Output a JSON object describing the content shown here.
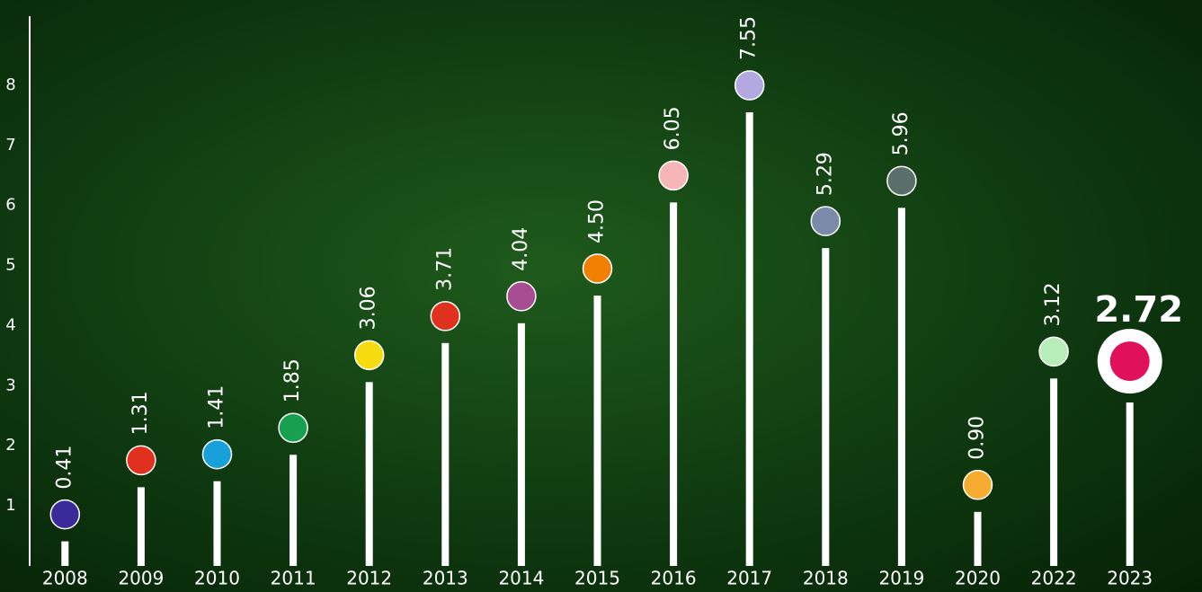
{
  "chart_data": {
    "type": "lollipop",
    "categories": [
      "2008",
      "2009",
      "2010",
      "2011",
      "2012",
      "2013",
      "2014",
      "2015",
      "2016",
      "2017",
      "2018",
      "2019",
      "2020",
      "2022",
      "2023"
    ],
    "values": [
      0.41,
      1.31,
      1.41,
      1.85,
      3.06,
      3.71,
      4.04,
      4.5,
      6.05,
      7.55,
      5.29,
      5.96,
      0.9,
      3.12,
      2.72
    ],
    "value_labels": [
      "0.41",
      "1.31",
      "1.41",
      "1.85",
      "3.06",
      "3.71",
      "4.04",
      "4.50",
      "6.05",
      "7.55",
      "5.29",
      "5.96",
      "0.90",
      "3.12",
      "2.72"
    ],
    "colors": [
      "#3a2a9a",
      "#e0301e",
      "#18a0d8",
      "#16a050",
      "#f5dc10",
      "#e0301e",
      "#a84d92",
      "#f08000",
      "#f6b6b8",
      "#b4a8e0",
      "#7a8aa8",
      "#5a6e6a",
      "#f5ac30",
      "#b8ecb8",
      "#e0105a"
    ],
    "highlight": "2023",
    "ylim": [
      0,
      9.15
    ],
    "yticks": [
      1,
      2,
      3,
      4,
      5,
      6,
      7,
      8
    ]
  }
}
